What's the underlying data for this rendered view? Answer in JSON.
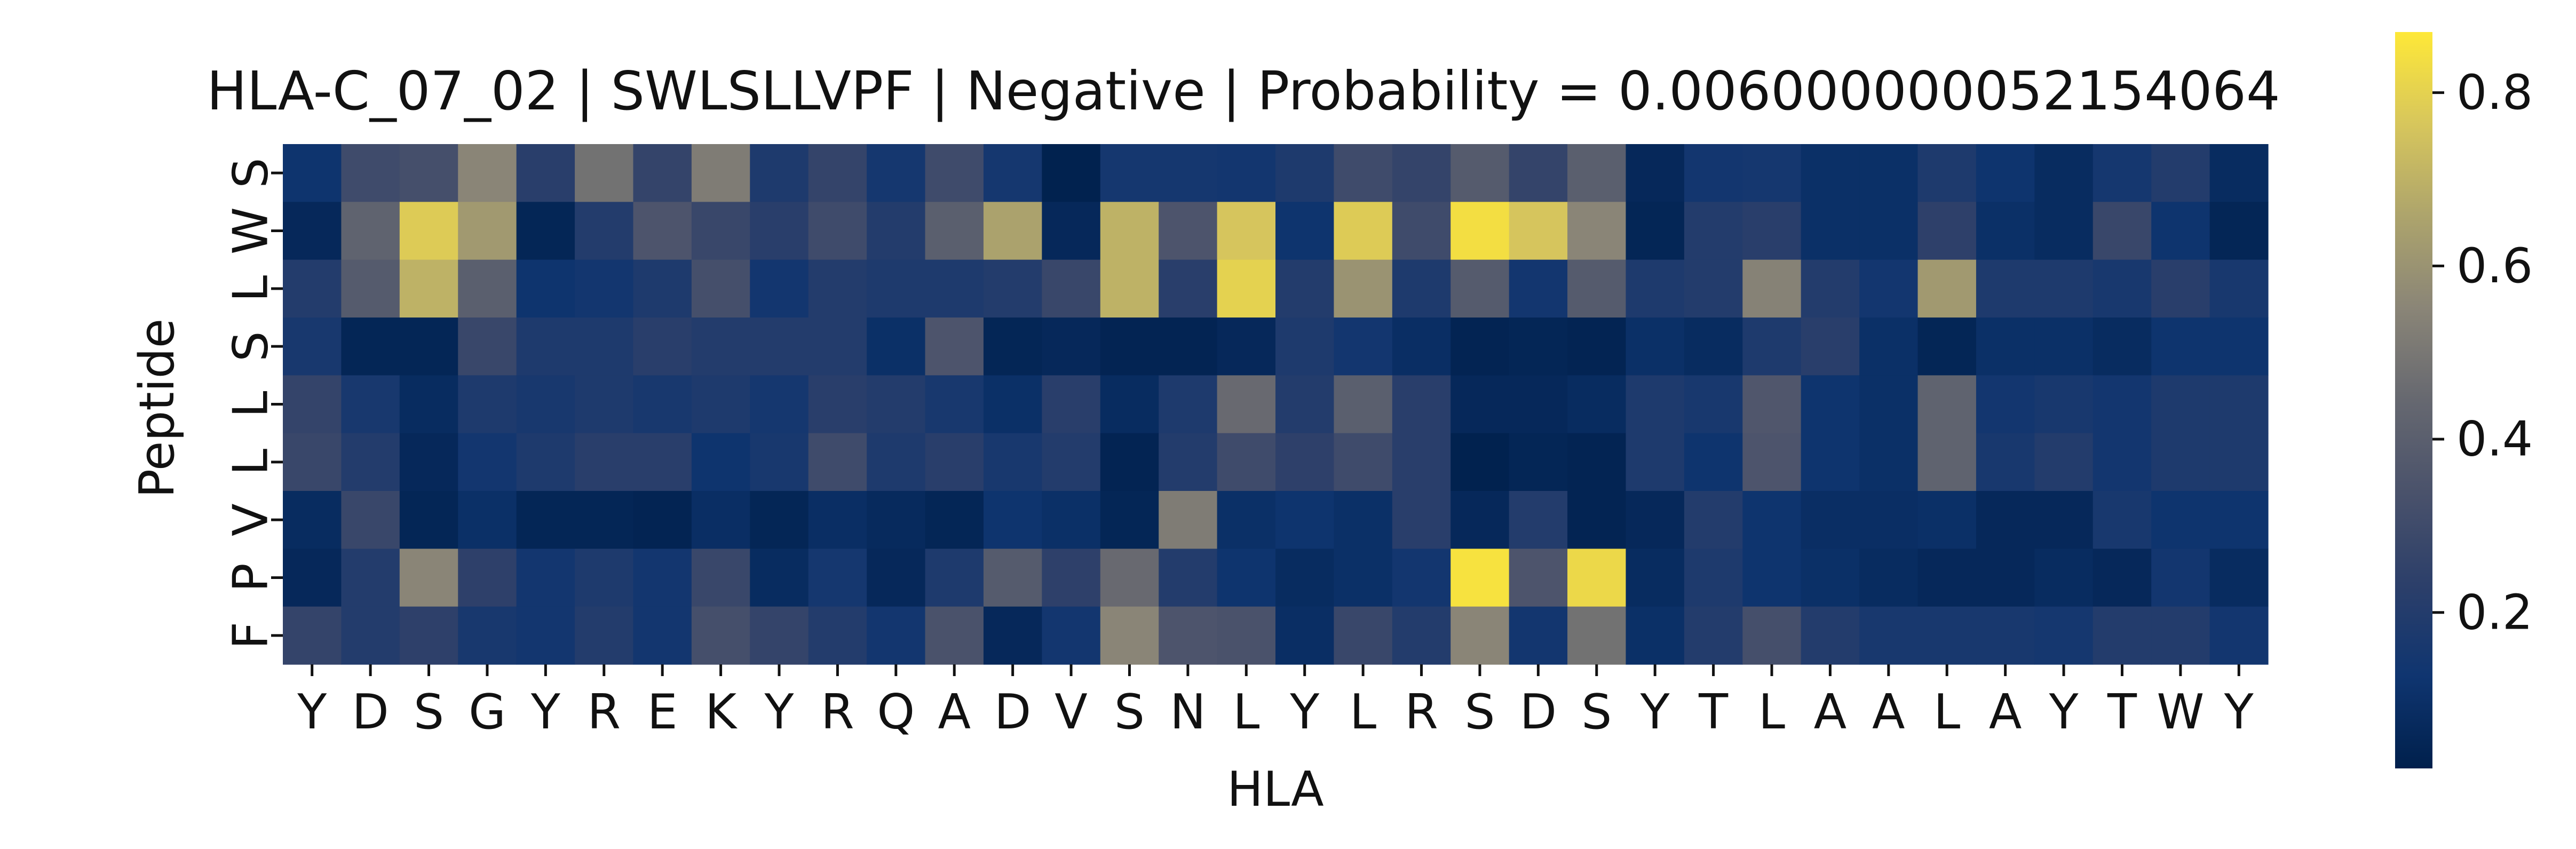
{
  "chart_data": {
    "type": "heatmap",
    "title": "HLA-C_07_02 | SWLSLLVPF | Negative | Probability = 0.006000000052154064",
    "xlabel": "HLA",
    "ylabel": "Peptide",
    "x_categories": [
      "Y",
      "D",
      "S",
      "G",
      "Y",
      "R",
      "E",
      "K",
      "Y",
      "R",
      "Q",
      "A",
      "D",
      "V",
      "S",
      "N",
      "L",
      "Y",
      "L",
      "R",
      "S",
      "D",
      "S",
      "Y",
      "T",
      "L",
      "A",
      "A",
      "L",
      "A",
      "Y",
      "T",
      "W",
      "Y"
    ],
    "y_categories": [
      "S",
      "W",
      "L",
      "S",
      "L",
      "L",
      "V",
      "P",
      "F"
    ],
    "colormap": "cividis",
    "colorbar": {
      "min": 0.02,
      "max": 0.87,
      "ticks": [
        0.2,
        0.4,
        0.6,
        0.8
      ]
    },
    "values": [
      [
        0.12,
        0.3,
        0.32,
        0.55,
        0.22,
        0.48,
        0.26,
        0.52,
        0.18,
        0.26,
        0.15,
        0.3,
        0.15,
        0.03,
        0.15,
        0.15,
        0.14,
        0.18,
        0.3,
        0.26,
        0.38,
        0.26,
        0.4,
        0.06,
        0.14,
        0.15,
        0.1,
        0.1,
        0.18,
        0.12,
        0.08,
        0.15,
        0.2,
        0.08
      ],
      [
        0.06,
        0.42,
        0.78,
        0.62,
        0.05,
        0.2,
        0.35,
        0.28,
        0.22,
        0.3,
        0.2,
        0.4,
        0.65,
        0.06,
        0.7,
        0.35,
        0.76,
        0.12,
        0.78,
        0.3,
        0.84,
        0.76,
        0.55,
        0.05,
        0.2,
        0.22,
        0.1,
        0.1,
        0.24,
        0.1,
        0.08,
        0.28,
        0.12,
        0.05
      ],
      [
        0.2,
        0.38,
        0.7,
        0.4,
        0.12,
        0.14,
        0.18,
        0.32,
        0.14,
        0.2,
        0.18,
        0.18,
        0.2,
        0.28,
        0.7,
        0.22,
        0.8,
        0.2,
        0.6,
        0.18,
        0.38,
        0.14,
        0.38,
        0.18,
        0.2,
        0.54,
        0.2,
        0.14,
        0.62,
        0.18,
        0.18,
        0.16,
        0.22,
        0.16
      ],
      [
        0.16,
        0.05,
        0.05,
        0.28,
        0.18,
        0.18,
        0.22,
        0.2,
        0.2,
        0.2,
        0.1,
        0.35,
        0.05,
        0.06,
        0.04,
        0.04,
        0.06,
        0.18,
        0.14,
        0.09,
        0.04,
        0.05,
        0.04,
        0.1,
        0.08,
        0.18,
        0.22,
        0.1,
        0.05,
        0.1,
        0.1,
        0.08,
        0.12,
        0.12
      ],
      [
        0.26,
        0.16,
        0.08,
        0.18,
        0.16,
        0.18,
        0.16,
        0.18,
        0.15,
        0.22,
        0.2,
        0.16,
        0.1,
        0.22,
        0.08,
        0.18,
        0.45,
        0.2,
        0.4,
        0.22,
        0.06,
        0.06,
        0.08,
        0.18,
        0.16,
        0.36,
        0.12,
        0.1,
        0.42,
        0.14,
        0.16,
        0.14,
        0.18,
        0.18
      ],
      [
        0.28,
        0.2,
        0.06,
        0.14,
        0.18,
        0.22,
        0.22,
        0.12,
        0.16,
        0.3,
        0.18,
        0.22,
        0.16,
        0.2,
        0.04,
        0.2,
        0.3,
        0.24,
        0.3,
        0.22,
        0.03,
        0.05,
        0.04,
        0.18,
        0.12,
        0.35,
        0.12,
        0.1,
        0.42,
        0.16,
        0.2,
        0.14,
        0.18,
        0.18
      ],
      [
        0.08,
        0.28,
        0.05,
        0.1,
        0.05,
        0.05,
        0.04,
        0.09,
        0.05,
        0.09,
        0.07,
        0.05,
        0.12,
        0.1,
        0.05,
        0.52,
        0.1,
        0.12,
        0.1,
        0.22,
        0.06,
        0.2,
        0.04,
        0.06,
        0.2,
        0.12,
        0.09,
        0.09,
        0.1,
        0.06,
        0.06,
        0.16,
        0.12,
        0.12
      ],
      [
        0.06,
        0.2,
        0.55,
        0.24,
        0.14,
        0.18,
        0.14,
        0.28,
        0.08,
        0.15,
        0.06,
        0.18,
        0.38,
        0.24,
        0.45,
        0.2,
        0.12,
        0.08,
        0.1,
        0.14,
        0.85,
        0.35,
        0.82,
        0.08,
        0.18,
        0.12,
        0.1,
        0.08,
        0.06,
        0.06,
        0.08,
        0.06,
        0.14,
        0.08
      ],
      [
        0.26,
        0.2,
        0.24,
        0.16,
        0.14,
        0.2,
        0.14,
        0.32,
        0.26,
        0.2,
        0.14,
        0.34,
        0.06,
        0.14,
        0.55,
        0.35,
        0.34,
        0.09,
        0.28,
        0.2,
        0.55,
        0.14,
        0.48,
        0.1,
        0.2,
        0.32,
        0.2,
        0.16,
        0.16,
        0.16,
        0.15,
        0.2,
        0.2,
        0.14
      ]
    ]
  }
}
